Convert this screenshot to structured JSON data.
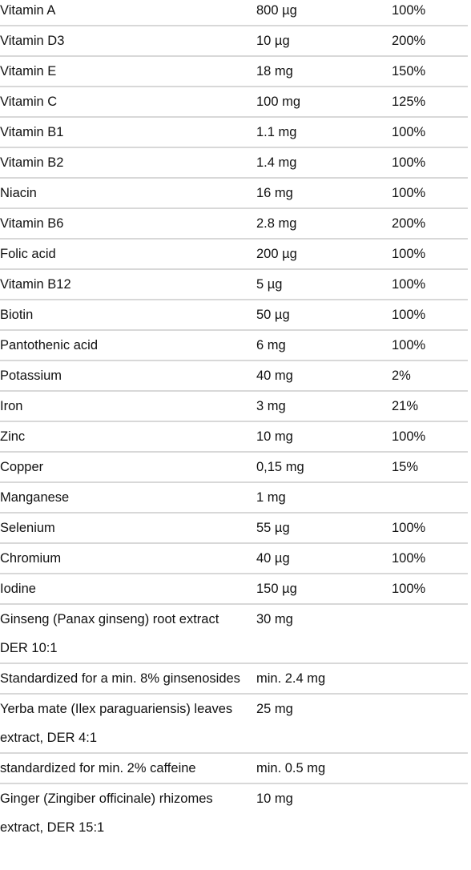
{
  "nutrition_table": {
    "rows": [
      {
        "name": "Vitamin A",
        "amount": "800 µg",
        "percent": "100%"
      },
      {
        "name": "Vitamin D3",
        "amount": "10 µg",
        "percent": "200%"
      },
      {
        "name": "Vitamin E",
        "amount": "18 mg",
        "percent": "150%"
      },
      {
        "name": "Vitamin C",
        "amount": "100 mg",
        "percent": "125%"
      },
      {
        "name": "Vitamin B1",
        "amount": "1.1 mg",
        "percent": "100%"
      },
      {
        "name": "Vitamin B2",
        "amount": "1.4 mg",
        "percent": "100%"
      },
      {
        "name": "Niacin",
        "amount": "16 mg",
        "percent": "100%"
      },
      {
        "name": "Vitamin B6",
        "amount": "2.8 mg",
        "percent": "200%"
      },
      {
        "name": "Folic acid",
        "amount": "200 µg",
        "percent": "100%"
      },
      {
        "name": "Vitamin B12",
        "amount": "5 µg",
        "percent": "100%"
      },
      {
        "name": "Biotin",
        "amount": "50 µg",
        "percent": "100%"
      },
      {
        "name": "Pantothenic acid",
        "amount": "6 mg",
        "percent": "100%"
      },
      {
        "name": "Potassium",
        "amount": "40 mg",
        "percent": "2%"
      },
      {
        "name": "Iron",
        "amount": "3 mg",
        "percent": "21%"
      },
      {
        "name": "Zinc",
        "amount": "10 mg",
        "percent": "100%"
      },
      {
        "name": "Copper",
        "amount": "0,15 mg",
        "percent": "15%"
      },
      {
        "name": "Manganese",
        "amount": "1 mg",
        "percent": ""
      },
      {
        "name": "Selenium",
        "amount": "55 µg",
        "percent": "100%"
      },
      {
        "name": "Chromium",
        "amount": "40 µg",
        "percent": "100%"
      },
      {
        "name": "Iodine",
        "amount": "150 µg",
        "percent": "100%"
      },
      {
        "name": "Ginseng (Panax ginseng) root extract DER 10:1",
        "amount": "30 mg",
        "percent": ""
      },
      {
        "name": "Standardized for a min. 8% ginsenosides",
        "amount": "min. 2.4 mg",
        "percent": ""
      },
      {
        "name": "Yerba mate (Ilex paraguariensis) leaves extract, DER 4:1",
        "amount": "25 mg",
        "percent": ""
      },
      {
        "name": "standardized for min. 2% caffeine",
        "amount": "min. 0.5 mg",
        "percent": ""
      },
      {
        "name": "Ginger (Zingiber officinale) rhizomes extract, DER 15:1",
        "amount": "10 mg",
        "percent": ""
      }
    ]
  }
}
